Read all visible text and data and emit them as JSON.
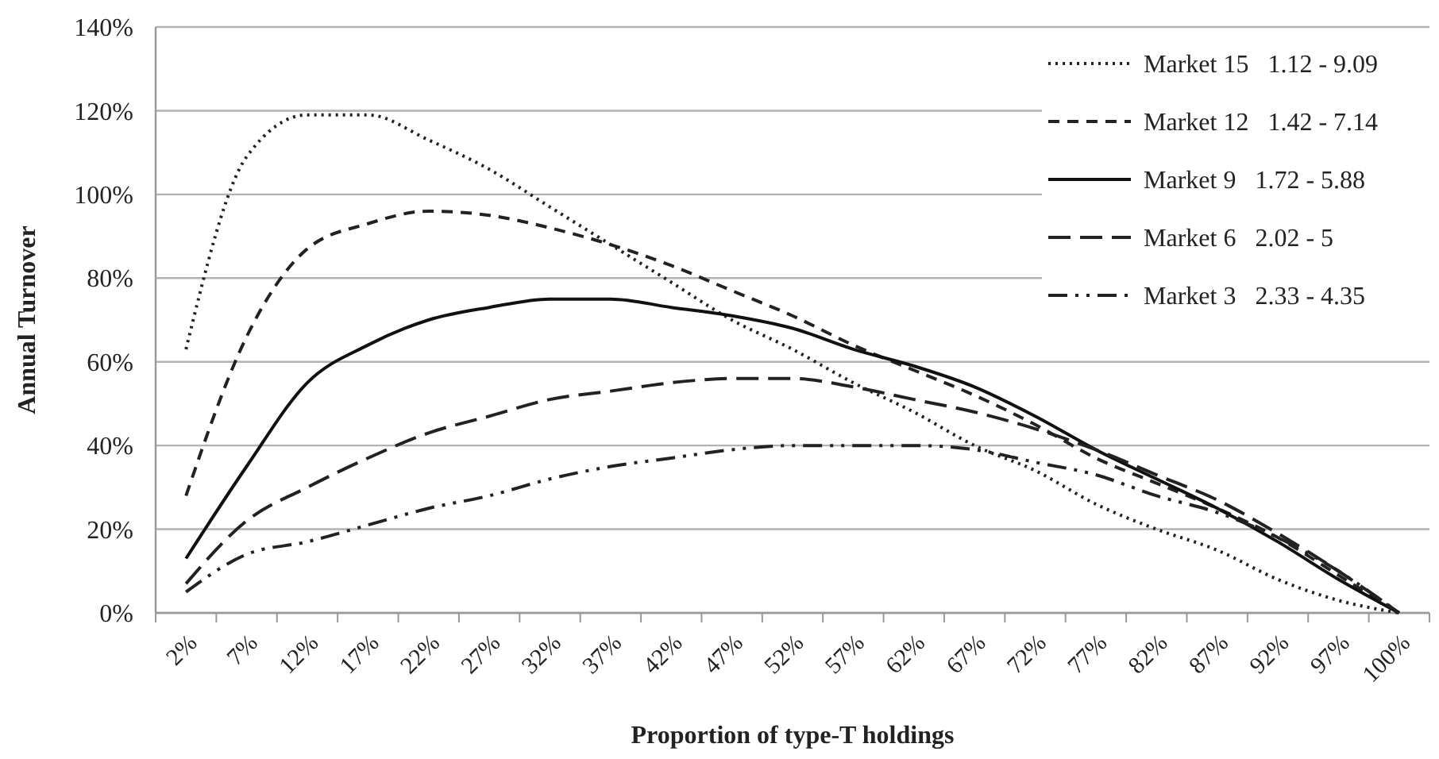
{
  "chart_data": {
    "type": "line",
    "xlabel": "Proportion of type-T holdings",
    "ylabel": "Annual Turnover",
    "categories": [
      "2%",
      "7%",
      "12%",
      "17%",
      "22%",
      "27%",
      "32%",
      "37%",
      "42%",
      "47%",
      "52%",
      "57%",
      "62%",
      "67%",
      "72%",
      "77%",
      "82%",
      "87%",
      "92%",
      "97%",
      "100%"
    ],
    "ylim": [
      0,
      140
    ],
    "yticks": [
      {
        "value": 0,
        "label": "0%"
      },
      {
        "value": 20,
        "label": "20%"
      },
      {
        "value": 40,
        "label": "40%"
      },
      {
        "value": 60,
        "label": "60%"
      },
      {
        "value": 80,
        "label": "80%"
      },
      {
        "value": 100,
        "label": "100%"
      },
      {
        "value": 120,
        "label": "120%"
      },
      {
        "value": 140,
        "label": "140%"
      }
    ],
    "grid": "y",
    "legend": "top right",
    "marker": "none",
    "series": [
      {
        "name": "Market 15   1.12 - 9.09",
        "color": "#222222",
        "line_style": "dotted",
        "values": [
          63,
          109,
          119,
          119,
          113,
          106,
          97,
          88,
          79,
          70,
          63,
          55,
          48,
          40,
          34,
          26,
          20,
          15,
          8,
          3,
          0
        ]
      },
      {
        "name": "Market 12   1.42 - 7.14",
        "color": "#222222",
        "line_style": "dashed",
        "values": [
          28,
          66,
          87,
          93,
          96,
          95,
          92,
          88,
          83,
          77,
          71,
          64,
          58,
          52,
          45,
          37,
          31,
          25,
          18,
          9,
          0
        ]
      },
      {
        "name": "Market 9   1.72 - 5.88",
        "color": "#111111",
        "line_style": "solid",
        "values": [
          13,
          35,
          55,
          64,
          70,
          73,
          75,
          75,
          73,
          71,
          68,
          63,
          59,
          54,
          47,
          39,
          32,
          25,
          17,
          8,
          0
        ]
      },
      {
        "name": "Market 6   2.02 - 5",
        "color": "#222222",
        "line_style": "longdash",
        "values": [
          7,
          22,
          30,
          37,
          43,
          47,
          51,
          53,
          55,
          56,
          56,
          54,
          51,
          48,
          44,
          39,
          33,
          27,
          19,
          10,
          0
        ]
      },
      {
        "name": "Market 3   2.33 - 4.35",
        "color": "#222222",
        "line_style": "dashdot",
        "values": [
          5,
          14,
          17,
          21,
          25,
          28,
          32,
          35,
          37,
          39,
          40,
          40,
          40,
          39,
          36,
          33,
          28,
          24,
          18,
          10,
          0
        ]
      }
    ]
  }
}
